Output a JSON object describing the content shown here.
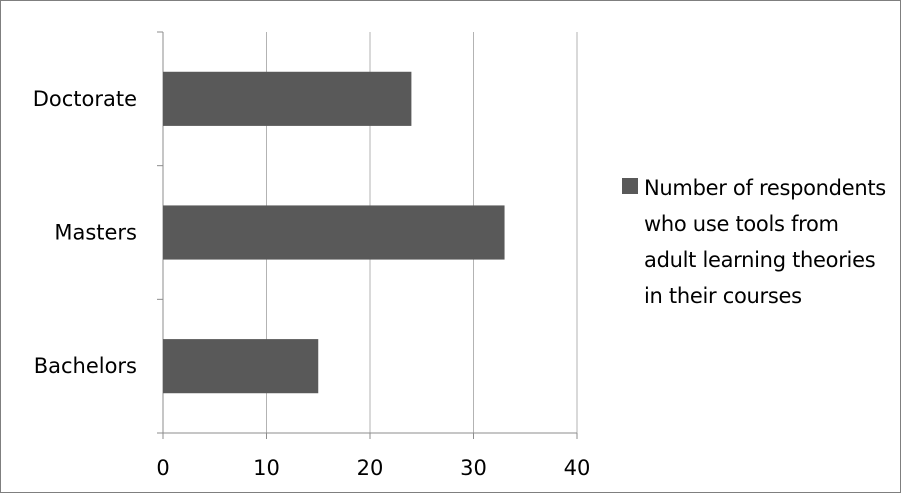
{
  "chart_data": {
    "type": "bar",
    "orientation": "horizontal",
    "categories": [
      "Doctorate",
      "Masters",
      "Bachelors"
    ],
    "series": [
      {
        "name": "Number of respondents who use tools from adult learning theories in their courses",
        "values": [
          24,
          33,
          15
        ]
      }
    ],
    "xlim": [
      0,
      40
    ],
    "xticks": [
      "0",
      "10",
      "20",
      "30",
      "40"
    ],
    "grid": "vertical",
    "legend_position": "right",
    "bar_color": "#595959",
    "grid_color": "#b3b3b3",
    "axis_color": "#8c8c8c"
  }
}
